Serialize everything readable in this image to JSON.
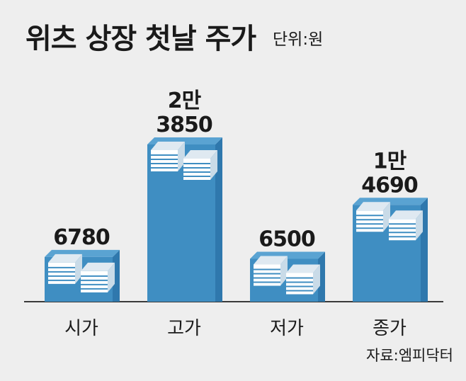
{
  "title": "위츠 상장 첫날 주가",
  "unit": "단위:원",
  "source": "자료:엠피닥터",
  "colors": {
    "bar_front": "#3f8ec2",
    "bar_side": "#2f78ad",
    "bar_top": "#5aa3d2",
    "money_top": "#dfe9f1",
    "money_side": "#ffffff",
    "money_lines": "#3f8ec2",
    "text": "#1a1a1a",
    "baseline": "#3a3a3a"
  },
  "chart_data": {
    "type": "bar",
    "title": "위츠 상장 첫날 주가",
    "ylabel": "",
    "xlabel": "",
    "categories": [
      "시가",
      "고가",
      "저가",
      "종가"
    ],
    "values": [
      6780,
      23850,
      6500,
      14690
    ],
    "value_labels": [
      [
        "6780"
      ],
      [
        "2만",
        "3850"
      ],
      [
        "6500"
      ],
      [
        "1만",
        "4690"
      ]
    ],
    "ylim": [
      0,
      26000
    ],
    "grid": false,
    "legend": "none"
  }
}
